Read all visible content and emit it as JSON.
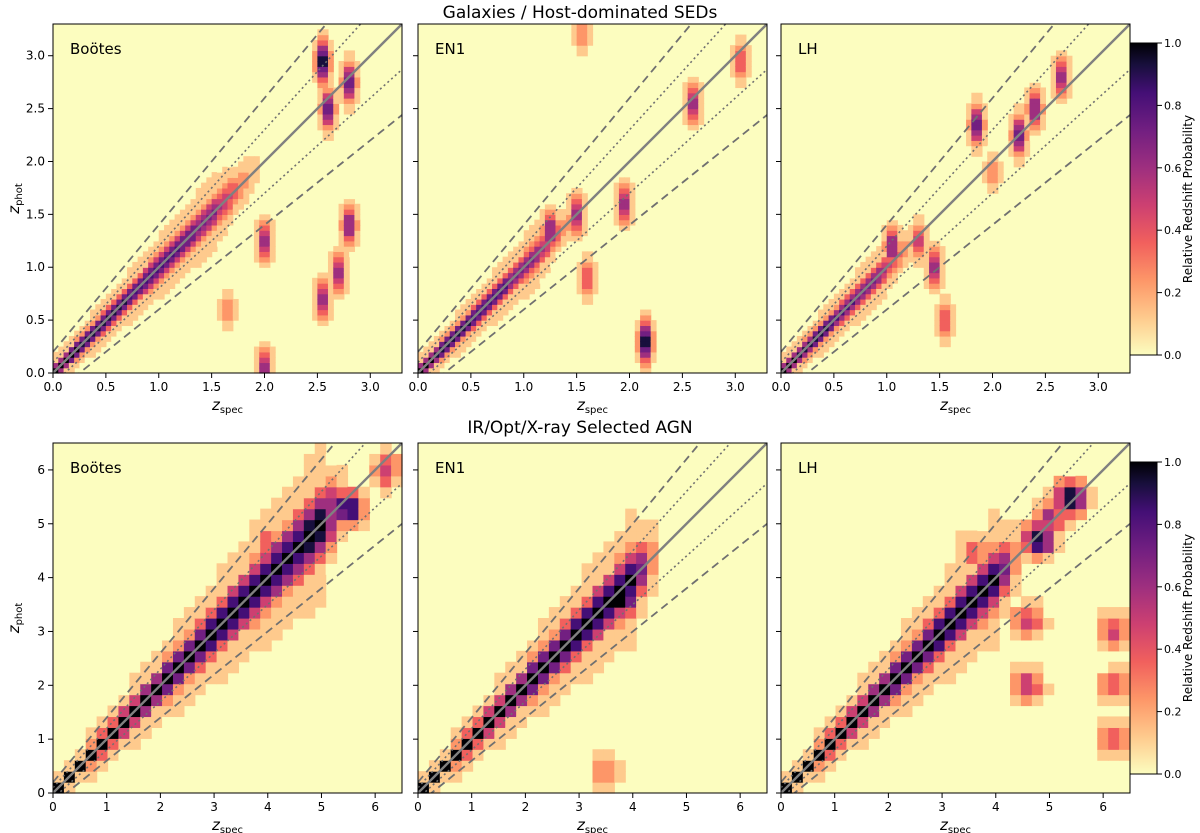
{
  "colorbar": {
    "label": "Relative Redshift Probability",
    "ticks": [
      "0.0",
      "0.2",
      "0.4",
      "0.6",
      "0.8",
      "1.0"
    ]
  },
  "colors": {
    "background": "#fcfdbf",
    "diagonal": "#808080",
    "dashed": "#707070",
    "dotted": "#707070",
    "colormap": [
      "#fcfdbf",
      "#feca8d",
      "#fd9668",
      "#f1605d",
      "#cd4071",
      "#9e2f7f",
      "#721f81",
      "#440f76",
      "#180f3d",
      "#000004"
    ]
  },
  "chart_data": [
    {
      "type": "heatmap",
      "title": "Galaxies / Host-dominated SEDs",
      "xlabel": "z_spec",
      "ylabel": "z_phot",
      "xlim": [
        0,
        3.3
      ],
      "ylim": [
        0,
        3.3
      ],
      "xticks": [
        "0.0",
        "0.5",
        "1.0",
        "1.5",
        "2.0",
        "2.5",
        "3.0"
      ],
      "yticks": [
        "0.0",
        "0.5",
        "1.0",
        "1.5",
        "2.0",
        "2.5",
        "3.0"
      ],
      "reference_lines": {
        "one_to_one": "z_phot = z_spec",
        "dotted": "z_phot = z_spec ± 0.1(1+z_spec)",
        "dashed": "z_phot = z_spec ± 0.2(1+z_spec)"
      },
      "panels": [
        {
          "field": "Boötes",
          "ridge_top": 1.5,
          "outliers": [
            [
              2.55,
              2.95,
              1.0
            ],
            [
              2.6,
              2.5,
              0.8
            ],
            [
              2.8,
              2.75,
              0.8
            ],
            [
              2.8,
              1.4,
              0.7
            ],
            [
              2.55,
              0.7,
              0.6
            ],
            [
              2.0,
              1.25,
              0.6
            ],
            [
              2.7,
              0.95,
              0.6
            ],
            [
              2.0,
              0.05,
              0.6
            ],
            [
              1.65,
              0.6,
              0.3
            ]
          ]
        },
        {
          "field": "EN1",
          "ridge_top": 1.1,
          "outliers": [
            [
              2.15,
              0.3,
              1.0
            ],
            [
              1.25,
              1.35,
              0.7
            ],
            [
              1.5,
              1.5,
              0.6
            ],
            [
              1.95,
              1.6,
              0.6
            ],
            [
              2.6,
              2.55,
              0.6
            ],
            [
              1.6,
              0.9,
              0.4
            ],
            [
              3.05,
              2.95,
              0.4
            ],
            [
              1.55,
              3.2,
              0.3
            ]
          ]
        },
        {
          "field": "LH",
          "ridge_top": 0.9,
          "outliers": [
            [
              1.85,
              2.35,
              0.8
            ],
            [
              2.25,
              2.25,
              0.8
            ],
            [
              2.4,
              2.5,
              0.7
            ],
            [
              2.65,
              2.8,
              0.6
            ],
            [
              1.05,
              1.2,
              0.7
            ],
            [
              1.3,
              1.25,
              0.5
            ],
            [
              1.45,
              1.0,
              0.6
            ],
            [
              1.55,
              0.5,
              0.4
            ],
            [
              2.0,
              1.9,
              0.3
            ]
          ]
        }
      ]
    },
    {
      "type": "heatmap",
      "title": "IR/Opt/X-ray Selected AGN",
      "xlabel": "z_spec",
      "ylabel": "z_phot",
      "xlim": [
        0,
        6.5
      ],
      "ylim": [
        0,
        6.5
      ],
      "xticks": [
        "0",
        "1",
        "2",
        "3",
        "4",
        "5",
        "6"
      ],
      "yticks": [
        "0",
        "1",
        "2",
        "3",
        "4",
        "5",
        "6"
      ],
      "reference_lines": {
        "one_to_one": "z_phot = z_spec",
        "dotted": "z_phot = z_spec ± 0.1(1+z_spec)",
        "dashed": "z_phot = z_spec ± 0.2(1+z_spec)"
      },
      "panels": [
        {
          "field": "Boötes",
          "ridge_top": 5.0,
          "outliers": [
            [
              5.5,
              5.3,
              1.0
            ],
            [
              6.2,
              6.0,
              0.5
            ],
            [
              4.6,
              4.7,
              0.9
            ],
            [
              4.0,
              4.7,
              0.4
            ]
          ]
        },
        {
          "field": "EN1",
          "ridge_top": 4.0,
          "outliers": [
            [
              3.8,
              3.6,
              1.0
            ],
            [
              4.0,
              4.0,
              0.7
            ],
            [
              3.5,
              0.4,
              0.3
            ]
          ]
        },
        {
          "field": "LH",
          "ridge_top": 4.0,
          "outliers": [
            [
              4.8,
              4.7,
              1.0
            ],
            [
              5.4,
              5.5,
              1.0
            ],
            [
              5.0,
              5.1,
              0.6
            ],
            [
              4.6,
              3.2,
              0.5
            ],
            [
              4.6,
              2.0,
              0.5
            ],
            [
              6.2,
              3.0,
              0.5
            ],
            [
              6.2,
              2.0,
              0.4
            ],
            [
              6.2,
              1.0,
              0.4
            ],
            [
              3.6,
              4.5,
              0.4
            ]
          ]
        }
      ]
    }
  ]
}
